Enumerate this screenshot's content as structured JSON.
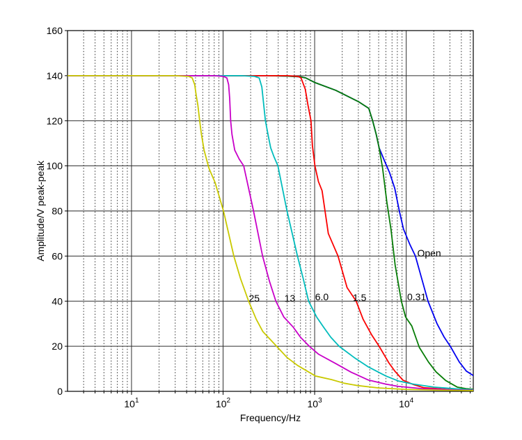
{
  "figure": {
    "background": "#ffffff",
    "plot_box_color": "#000000",
    "grid_major_color": "#2e2e2e",
    "grid_minor_color": "#383838",
    "text_color": "#000000"
  },
  "chart_data": {
    "type": "line",
    "title": "",
    "xlabel": "Frequency/Hz",
    "ylabel": "Amplitude/V peak-peak",
    "x_scale": "log",
    "xlim": [
      2,
      54000
    ],
    "ylim": [
      0,
      160
    ],
    "y_ticks": [
      0,
      20,
      40,
      60,
      80,
      100,
      120,
      140,
      160
    ],
    "x_major_tick_exponents": [
      1,
      2,
      3,
      4
    ],
    "x_tick_mantissa": "10",
    "grid": "on",
    "legend_position": "none",
    "series": [
      {
        "id": "open",
        "label": "Open",
        "color": "#0000f0",
        "label_f": 17800,
        "label_a": 61.3,
        "points": [
          [
            2,
            140
          ],
          [
            300,
            140
          ],
          [
            500,
            139.8
          ],
          [
            700,
            139.5
          ],
          [
            800,
            139
          ],
          [
            1000,
            137
          ],
          [
            1700,
            133.5
          ],
          [
            3000,
            128.5
          ],
          [
            3900,
            125.5
          ],
          [
            4300,
            120
          ],
          [
            4700,
            114
          ],
          [
            5060,
            108
          ],
          [
            5820,
            102
          ],
          [
            6580,
            97
          ],
          [
            7500,
            90
          ],
          [
            8410,
            80
          ],
          [
            9330,
            72
          ],
          [
            11000,
            65
          ],
          [
            12600,
            60
          ],
          [
            15000,
            49
          ],
          [
            17300,
            40
          ],
          [
            21700,
            30
          ],
          [
            26000,
            24
          ],
          [
            30300,
            20
          ],
          [
            38000,
            13
          ],
          [
            45300,
            9
          ],
          [
            54000,
            7
          ]
        ]
      },
      {
        "id": "c0-31",
        "label": "0.31",
        "color": "#077d07",
        "label_f": 13000,
        "label_a": 42,
        "points": [
          [
            2,
            140
          ],
          [
            300,
            140
          ],
          [
            500,
            139.8
          ],
          [
            700,
            139.5
          ],
          [
            800,
            139
          ],
          [
            1000,
            137
          ],
          [
            1700,
            133.5
          ],
          [
            3000,
            128.5
          ],
          [
            3900,
            125.5
          ],
          [
            4300,
            120
          ],
          [
            4700,
            114
          ],
          [
            5060,
            108
          ],
          [
            5520,
            99
          ],
          [
            6140,
            84
          ],
          [
            6810,
            72
          ],
          [
            7570,
            56
          ],
          [
            8850,
            40
          ],
          [
            9840,
            33
          ],
          [
            11500,
            29
          ],
          [
            13900,
            19.5
          ],
          [
            17500,
            13
          ],
          [
            21200,
            8.6
          ],
          [
            27000,
            4.8
          ],
          [
            36000,
            1.9
          ],
          [
            45000,
            1.2
          ],
          [
            54000,
            0.9
          ]
        ]
      },
      {
        "id": "c1-5",
        "label": "1.5",
        "color": "#fb0000",
        "label_f": 3100,
        "label_a": 41.6,
        "points": [
          [
            2,
            140
          ],
          [
            500,
            140
          ],
          [
            660,
            139.7
          ],
          [
            710,
            139
          ],
          [
            790,
            134
          ],
          [
            845,
            127
          ],
          [
            912,
            120
          ],
          [
            945,
            109
          ],
          [
            1007,
            100
          ],
          [
            1100,
            93
          ],
          [
            1205,
            89
          ],
          [
            1410,
            70
          ],
          [
            1800,
            60
          ],
          [
            2260,
            46
          ],
          [
            2840,
            40
          ],
          [
            3380,
            32
          ],
          [
            4200,
            25
          ],
          [
            5060,
            20
          ],
          [
            6470,
            12.6
          ],
          [
            7500,
            9
          ],
          [
            9180,
            5
          ],
          [
            12000,
            3
          ],
          [
            15600,
            1.6
          ],
          [
            30000,
            0.8
          ],
          [
            54000,
            0.6
          ]
        ]
      },
      {
        "id": "c6-0",
        "label": "6.0",
        "color": "#00bcbc",
        "label_f": 1200,
        "label_a": 41.9,
        "points": [
          [
            2,
            140
          ],
          [
            160,
            140
          ],
          [
            220,
            139.7
          ],
          [
            248,
            139
          ],
          [
            265,
            135
          ],
          [
            278,
            127
          ],
          [
            290,
            120
          ],
          [
            316,
            112
          ],
          [
            331,
            108
          ],
          [
            360,
            104
          ],
          [
            397,
            100
          ],
          [
            499,
            80
          ],
          [
            649,
            60
          ],
          [
            750,
            50
          ],
          [
            859,
            40
          ],
          [
            1050,
            33
          ],
          [
            1240,
            28.7
          ],
          [
            1500,
            24
          ],
          [
            1850,
            20
          ],
          [
            2700,
            15
          ],
          [
            3870,
            10.8
          ],
          [
            6000,
            6.8
          ],
          [
            8200,
            4.6
          ],
          [
            12000,
            3.2
          ],
          [
            20000,
            1.9
          ],
          [
            35000,
            1.1
          ],
          [
            54000,
            0.7
          ]
        ]
      },
      {
        "id": "c13",
        "label": "13",
        "color": "#c800c8",
        "label_f": 536,
        "label_a": 41.3,
        "points": [
          [
            2,
            140
          ],
          [
            80,
            140
          ],
          [
            100,
            139.7
          ],
          [
            110,
            139
          ],
          [
            115,
            136
          ],
          [
            118,
            130
          ],
          [
            121,
            120
          ],
          [
            125,
            114
          ],
          [
            134,
            107
          ],
          [
            150,
            103
          ],
          [
            168,
            100
          ],
          [
            215,
            80
          ],
          [
            270,
            60
          ],
          [
            320,
            49
          ],
          [
            377,
            40
          ],
          [
            460,
            33
          ],
          [
            583,
            28.5
          ],
          [
            700,
            24
          ],
          [
            874,
            20
          ],
          [
            1100,
            16.5
          ],
          [
            1700,
            12.3
          ],
          [
            2500,
            8.5
          ],
          [
            3870,
            5
          ],
          [
            6000,
            3.2
          ],
          [
            8200,
            2.2
          ],
          [
            15000,
            1.2
          ],
          [
            30000,
            0.7
          ],
          [
            54000,
            0.5
          ]
        ]
      },
      {
        "id": "c25",
        "label": "25",
        "color": "#c9c900",
        "label_f": 219,
        "label_a": 41.3,
        "points": [
          [
            2,
            140
          ],
          [
            30,
            140
          ],
          [
            42,
            139.7
          ],
          [
            46,
            139
          ],
          [
            49,
            136
          ],
          [
            51,
            131
          ],
          [
            53,
            127
          ],
          [
            55.5,
            120
          ],
          [
            58,
            114
          ],
          [
            62,
            107
          ],
          [
            70,
            99
          ],
          [
            82,
            92.5
          ],
          [
            101,
            80
          ],
          [
            131,
            60
          ],
          [
            155,
            50
          ],
          [
            190,
            40
          ],
          [
            230,
            32
          ],
          [
            272,
            26.5
          ],
          [
            384,
            20
          ],
          [
            500,
            15
          ],
          [
            650,
            11.5
          ],
          [
            1020,
            6.8
          ],
          [
            1530,
            5.2
          ],
          [
            2100,
            3.6
          ],
          [
            2900,
            2.6
          ],
          [
            5000,
            1.5
          ],
          [
            10000,
            0.85
          ],
          [
            25000,
            0.5
          ],
          [
            54000,
            0.35
          ]
        ]
      }
    ]
  }
}
